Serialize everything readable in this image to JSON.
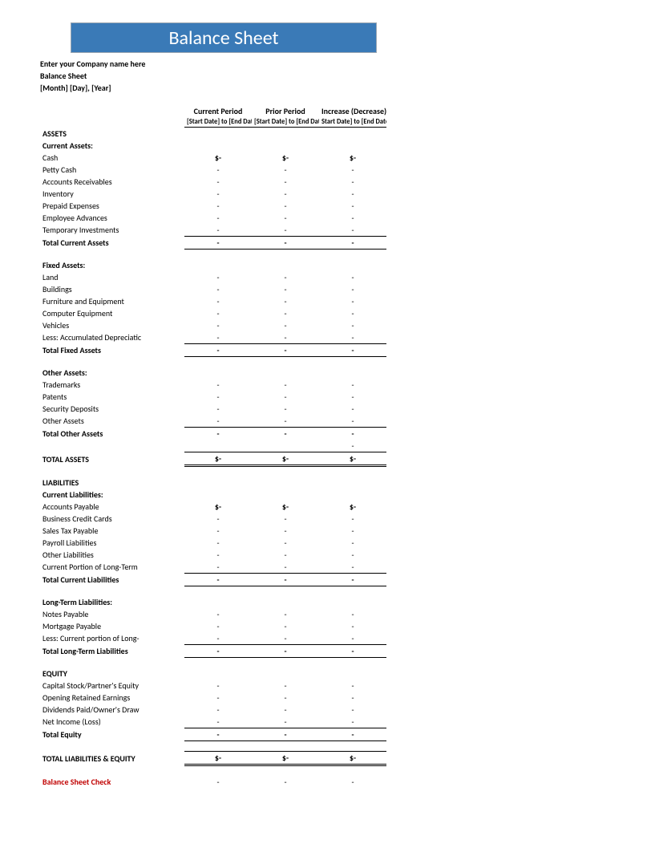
{
  "banner": {
    "title": "Balance Sheet",
    "bg": "#3a7ab7",
    "fg": "#ffffff"
  },
  "meta": {
    "company": "Enter your Company name here",
    "doc_title": "Balance Sheet",
    "date": "[Month] [Day], [Year]"
  },
  "columns": {
    "c1": {
      "head": "Current Period",
      "sub": "[Start Date] to [End Date]"
    },
    "c2": {
      "head": "Prior Period",
      "sub": "[Start Date] to [End Date]"
    },
    "c3": {
      "head": "Increase (Decrease)",
      "sub": "Start Date] to [End Date]"
    }
  },
  "dash": "-",
  "dollar_dash": "$-",
  "sections": {
    "assets": {
      "title": "ASSETS",
      "current": {
        "title": "Current Assets:",
        "items": [
          "Cash",
          "Petty Cash",
          "Accounts Receivables",
          "Inventory",
          "Prepaid Expenses",
          "Employee Advances",
          "Temporary Investments"
        ],
        "total": "Total Current Assets"
      },
      "fixed": {
        "title": "Fixed Assets:",
        "items": [
          "Land",
          "Buildings",
          "Furniture and Equipment",
          "Computer Equipment",
          "Vehicles",
          "Less: Accumulated Depreciatic"
        ],
        "total": "Total Fixed Assets"
      },
      "other": {
        "title": "Other Assets:",
        "items": [
          "Trademarks",
          "Patents",
          "Security Deposits",
          "Other Assets"
        ],
        "total": "Total Other Assets"
      },
      "grand": "TOTAL ASSETS"
    },
    "liabilities": {
      "title": "LIABILITIES",
      "current": {
        "title": "Current Liabilities:",
        "items": [
          "Accounts Payable",
          "Business Credit Cards",
          "Sales Tax Payable",
          "Payroll Liabilities",
          "Other Liabilities",
          "Current Portion of Long-Term"
        ],
        "total": "Total Current Liabilities"
      },
      "long": {
        "title": "Long-Term Liabilities:",
        "items": [
          "Notes Payable",
          "Mortgage Payable",
          "Less: Current portion of Long-"
        ],
        "total": "Total Long-Term Liabilities"
      }
    },
    "equity": {
      "title": "EQUITY",
      "items": [
        "Capital Stock/Partner's Equity",
        "Opening Retained Earnings",
        "Dividends Paid/Owner's Draw",
        "Net Income (Loss)"
      ],
      "total": "Total Equity"
    },
    "grand_liab_eq": "TOTAL LIABILITIES & EQUITY",
    "check": "Balance Sheet Check"
  }
}
